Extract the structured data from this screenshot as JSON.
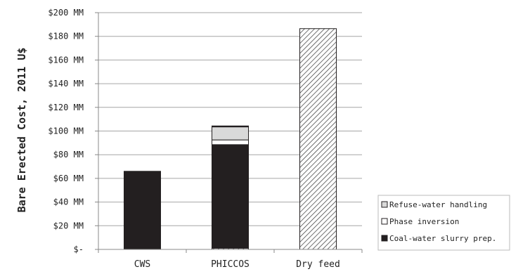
{
  "chart_data": {
    "type": "bar",
    "stacked": true,
    "title": "",
    "xlabel": "",
    "ylabel": "Bare Erected Cost, 2011 U$",
    "ylim": [
      0,
      200
    ],
    "ytick_values": [
      0,
      20,
      40,
      60,
      80,
      100,
      120,
      140,
      160,
      180,
      200
    ],
    "ytick_labels": [
      "$-",
      "$20 MM",
      "$40 MM",
      "$60 MM",
      "$80 MM",
      "$100 MM",
      "$120 MM",
      "$140 MM",
      "$160 MM",
      "$180 MM",
      "$200 MM"
    ],
    "grid": true,
    "categories": [
      "CWS",
      "PHICCOS",
      "Dry feed"
    ],
    "series": [
      {
        "name": "",
        "values": [
          0,
          1,
          0
        ],
        "color": "#ffffff",
        "pattern": "hatch"
      },
      {
        "name": "Coal-water slurry prep.",
        "values": [
          66,
          87.5,
          0
        ],
        "color": "#231f20"
      },
      {
        "name": "Phase inversion",
        "values": [
          0,
          4,
          0
        ],
        "color": "#ffffff"
      },
      {
        "name": "Refuse-water handling",
        "values": [
          0,
          11,
          0
        ],
        "color": "#d9d9d9"
      },
      {
        "name": "",
        "values": [
          0,
          0.8,
          0
        ],
        "color": "#231f20"
      },
      {
        "name": "",
        "values": [
          0,
          0,
          186.5
        ],
        "color": "#ffffff",
        "pattern": "hatch"
      }
    ],
    "legend": {
      "position": "bottom-right",
      "entries": [
        {
          "name": "Refuse-water handling",
          "color": "#d9d9d9"
        },
        {
          "name": "Phase inversion",
          "color": "#ffffff"
        },
        {
          "name": "Coal-water slurry prep.",
          "color": "#231f20"
        }
      ]
    }
  }
}
